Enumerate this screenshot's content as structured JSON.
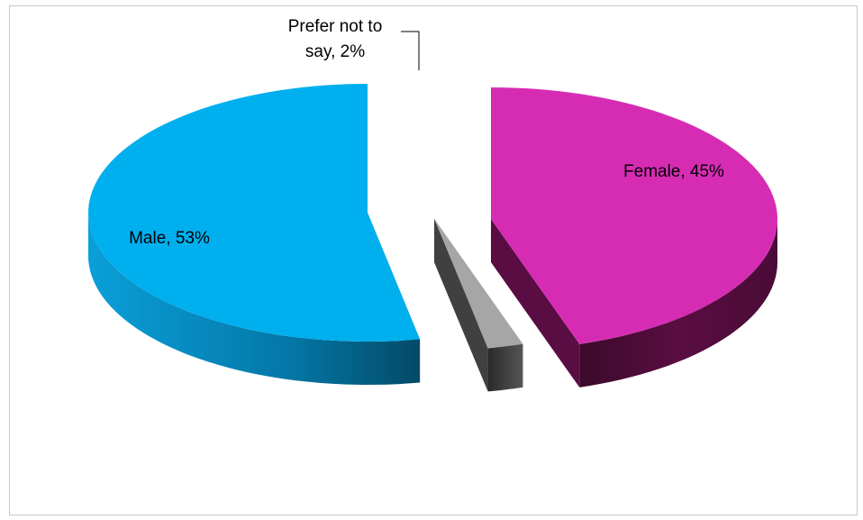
{
  "chart_data": {
    "type": "pie",
    "title": "",
    "categories": [
      "Female",
      "Prefer not to say",
      "Male"
    ],
    "values": [
      45,
      2,
      53
    ],
    "colors": {
      "Female": "#d62cb4",
      "Prefer not to say": "#a6a6a6",
      "Male": "#00afee"
    },
    "side_colors": {
      "Female": "#5a0d42",
      "Prefer not to say": "#404040",
      "Male": "#0378a8"
    },
    "style": "3d-exploded",
    "legend": "none",
    "data_labels": [
      {
        "category": "Female",
        "line1": "Female, 45%",
        "line2": ""
      },
      {
        "category": "Prefer not to say",
        "line1": "Prefer not to",
        "line2": "say, 2%"
      },
      {
        "category": "Male",
        "line1": "Male, 53%",
        "line2": ""
      }
    ]
  }
}
